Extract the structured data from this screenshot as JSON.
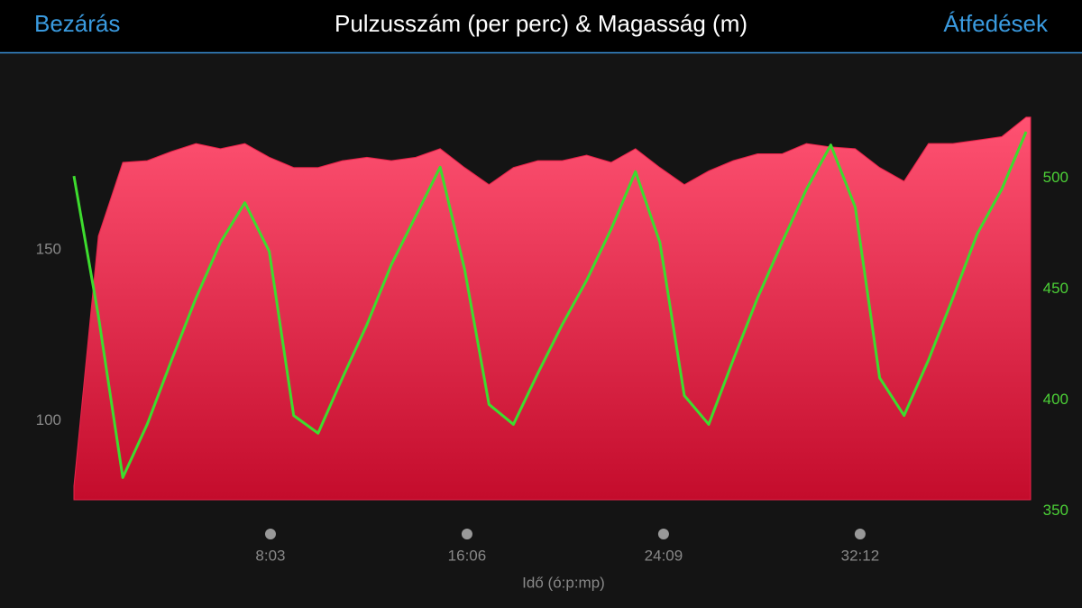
{
  "header": {
    "close": "Bezárás",
    "overlays": "Átfedések"
  },
  "chart_data": {
    "type": "area-line",
    "title": "Pulzusszám (per perc) & Magasság (m)",
    "x_label": "Idő (ó:p:mp)",
    "x": [
      0,
      60,
      120,
      180,
      240,
      300,
      360,
      420,
      480,
      540,
      600,
      660,
      720,
      780,
      840,
      900,
      960,
      1020,
      1080,
      1140,
      1200,
      1260,
      1320,
      1380,
      1440,
      1500,
      1560,
      1620,
      1680,
      1740,
      1800,
      1860,
      1920,
      1980,
      2040,
      2100,
      2160,
      2220,
      2280,
      2340
    ],
    "xlim": [
      0,
      2351
    ],
    "xticks": [
      {
        "value": 483,
        "label": "8:03"
      },
      {
        "value": 966,
        "label": "16:06"
      },
      {
        "value": 1449,
        "label": "24:09"
      },
      {
        "value": 1932,
        "label": "32:12"
      }
    ],
    "ylim": [
      77,
      200
    ],
    "yticks": [
      100,
      150
    ],
    "y2lim": [
      355,
      545
    ],
    "y2ticks": [
      350,
      400,
      450,
      500
    ],
    "series": [
      {
        "color": "#e8234a",
        "kind": "area",
        "values": [
          81,
          154,
          175.5,
          176,
          178.7,
          181,
          179.5,
          181,
          177,
          174,
          174,
          176,
          177,
          176,
          177,
          179.5,
          174,
          169,
          174,
          176,
          176,
          177.6,
          175.5,
          179.5,
          174,
          169,
          173,
          176,
          178,
          178,
          181,
          180,
          179.5,
          174,
          170,
          181,
          181,
          182,
          183,
          188.7
        ]
      },
      {
        "color": "#3ddc2e",
        "kind": "line",
        "axis": "y2",
        "values": [
          501,
          438,
          365,
          389,
          418,
          446,
          471,
          489,
          467,
          393,
          385,
          410,
          434,
          461,
          483,
          505,
          459,
          398,
          389,
          412,
          434,
          454,
          477,
          503,
          471,
          402,
          389,
          418,
          446,
          471,
          495,
          515,
          487,
          410,
          393,
          418,
          446,
          475,
          495,
          521
        ]
      }
    ]
  }
}
